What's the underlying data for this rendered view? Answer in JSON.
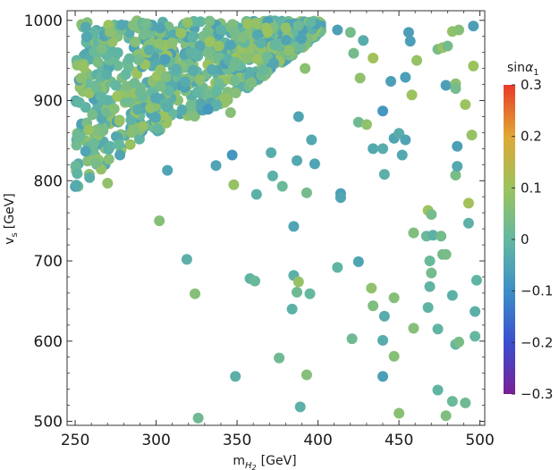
{
  "chart_data": {
    "type": "scatter",
    "x_label_main": "m",
    "x_label_sub": "H",
    "x_label_subsub": "2",
    "x_label_unit": "[GeV]",
    "y_label_main": "v",
    "y_label_sub": "s",
    "y_label_unit": "[GeV]",
    "colorbar_title_main": "sin",
    "colorbar_title_greek": "α",
    "colorbar_title_sub": "1",
    "xlim": [
      245,
      503
    ],
    "ylim": [
      495,
      1012
    ],
    "x_ticks": [
      250,
      300,
      350,
      400,
      450,
      500
    ],
    "x_tick_labels": [
      "250",
      "300",
      "350",
      "400",
      "450",
      "500"
    ],
    "y_ticks": [
      500,
      600,
      700,
      800,
      900,
      1000
    ],
    "y_tick_labels": [
      "500",
      "600",
      "700",
      "800",
      "900",
      "1000"
    ],
    "colorbar_ticks": [
      0.3,
      0.2,
      0.1,
      0,
      -0.1,
      -0.2,
      -0.3
    ],
    "colorbar_tick_labels": [
      "0.3",
      "0.2",
      "0.1",
      "0",
      "−0.1",
      "−0.2",
      "−0.3"
    ],
    "colorbar_range": [
      -0.3,
      0.3
    ],
    "colors": {
      "cb_stops": [
        "#7a1f96",
        "#3a4fd0",
        "#3c8fc6",
        "#64b8a0",
        "#9cc35e",
        "#e0a834",
        "#e83a28"
      ]
    },
    "dense_region": {
      "description_points": 0,
      "x_min": 250,
      "x_max": 402,
      "y_max": 1000,
      "lower_boundary": [
        [
          250,
          790
        ],
        [
          270,
          820
        ],
        [
          290,
          850
        ],
        [
          310,
          870
        ],
        [
          330,
          885
        ],
        [
          350,
          905
        ],
        [
          370,
          935
        ],
        [
          390,
          965
        ],
        [
          402,
          985
        ]
      ]
    },
    "points": [
      [
        302,
        750,
        0.06
      ],
      [
        270,
        797,
        0.08
      ],
      [
        307,
        813,
        -0.05
      ],
      [
        337,
        819,
        -0.05
      ],
      [
        347,
        832,
        -0.08
      ],
      [
        332,
        889,
        -0.08
      ],
      [
        346,
        885,
        0.06
      ],
      [
        348,
        795,
        0.09
      ],
      [
        362,
        783,
        -0.02
      ],
      [
        372,
        806,
        -0.02
      ],
      [
        371,
        835,
        -0.03
      ],
      [
        378,
        793,
        0.01
      ],
      [
        387,
        825,
        -0.04
      ],
      [
        388,
        880,
        -0.05
      ],
      [
        392,
        940,
        0.07
      ],
      [
        393,
        785,
        0.03
      ],
      [
        396,
        851,
        -0.04
      ],
      [
        398,
        821,
        -0.05
      ],
      [
        385,
        743,
        -0.05
      ],
      [
        414,
        784,
        -0.06
      ],
      [
        414,
        779,
        -0.05
      ],
      [
        412,
        988,
        -0.06
      ],
      [
        420,
        985,
        0.03
      ],
      [
        422,
        959,
        0.03
      ],
      [
        426,
        928,
        0.08
      ],
      [
        428,
        975,
        -0.03
      ],
      [
        425,
        873,
        0.02
      ],
      [
        430,
        870,
        0.08
      ],
      [
        434,
        953,
        0.11
      ],
      [
        440,
        887,
        -0.08
      ],
      [
        445,
        924,
        -0.06
      ],
      [
        447,
        853,
        -0.05
      ],
      [
        434,
        840,
        -0.04
      ],
      [
        440,
        840,
        -0.03
      ],
      [
        441,
        808,
        -0.02
      ],
      [
        450,
        859,
        -0.03
      ],
      [
        452,
        832,
        -0.04
      ],
      [
        454,
        851,
        -0.05
      ],
      [
        454,
        929,
        -0.06
      ],
      [
        456,
        985,
        -0.06
      ],
      [
        457,
        974,
        -0.06
      ],
      [
        458,
        907,
        0.1
      ],
      [
        461,
        950,
        0.09
      ],
      [
        468,
        763,
        0.1
      ],
      [
        470,
        758,
        0.03
      ],
      [
        474,
        964,
        0.04
      ],
      [
        477,
        966,
        0.09
      ],
      [
        479,
        919,
        -0.06
      ],
      [
        480,
        968,
        0.03
      ],
      [
        483,
        986,
        0.08
      ],
      [
        485,
        921,
        0.07
      ],
      [
        485,
        915,
        0.03
      ],
      [
        485,
        807,
        0.04
      ],
      [
        486,
        843,
        -0.06
      ],
      [
        486,
        818,
        -0.04
      ],
      [
        487,
        988,
        0.06
      ],
      [
        491,
        895,
        0.1
      ],
      [
        493,
        772,
        0.11
      ],
      [
        495,
        857,
        0.09
      ],
      [
        496,
        943,
        0.1
      ],
      [
        496,
        993,
        -0.06
      ],
      [
        319,
        702,
        -0.02
      ],
      [
        324,
        659,
        0.06
      ],
      [
        358,
        678,
        -0.01
      ],
      [
        361,
        675,
        0.01
      ],
      [
        385,
        682,
        -0.02
      ],
      [
        387,
        661,
        0.02
      ],
      [
        388,
        674,
        0.09
      ],
      [
        395,
        659,
        0.0
      ],
      [
        412,
        692,
        -0.01
      ],
      [
        425,
        699,
        -0.05
      ],
      [
        384,
        640,
        -0.02
      ],
      [
        433,
        666,
        0.08
      ],
      [
        434,
        644,
        0.05
      ],
      [
        441,
        631,
        -0.03
      ],
      [
        447,
        654,
        0.06
      ],
      [
        459,
        735,
        0.05
      ],
      [
        467,
        731,
        0.01
      ],
      [
        469,
        700,
        0.01
      ],
      [
        470,
        685,
        0.03
      ],
      [
        471,
        732,
        -0.02
      ],
      [
        476,
        731,
        0.03
      ],
      [
        477,
        708,
        0.03
      ],
      [
        479,
        708,
        0.04
      ],
      [
        468,
        642,
        -0.01
      ],
      [
        469,
        668,
        -0.01
      ],
      [
        483,
        657,
        -0.02
      ],
      [
        493,
        747,
        -0.02
      ],
      [
        498,
        676,
        -0.01
      ],
      [
        497,
        637,
        -0.02
      ],
      [
        497,
        606,
        0.0
      ],
      [
        421,
        603,
        0.02
      ],
      [
        440,
        601,
        -0.03
      ],
      [
        459,
        616,
        0.06
      ],
      [
        474,
        615,
        -0.01
      ],
      [
        485,
        596,
        0.0
      ],
      [
        487,
        599,
        0.04
      ],
      [
        376,
        579,
        0.02
      ],
      [
        447,
        581,
        0.06
      ],
      [
        349,
        556,
        -0.02
      ],
      [
        393,
        558,
        0.06
      ],
      [
        440,
        556,
        -0.06
      ],
      [
        474,
        539,
        -0.01
      ],
      [
        483,
        525,
        0.01
      ],
      [
        491,
        523,
        0.02
      ],
      [
        389,
        518,
        -0.02
      ],
      [
        326,
        504,
        0.02
      ],
      [
        450,
        510,
        0.07
      ],
      [
        479,
        507,
        0.05
      ]
    ]
  }
}
